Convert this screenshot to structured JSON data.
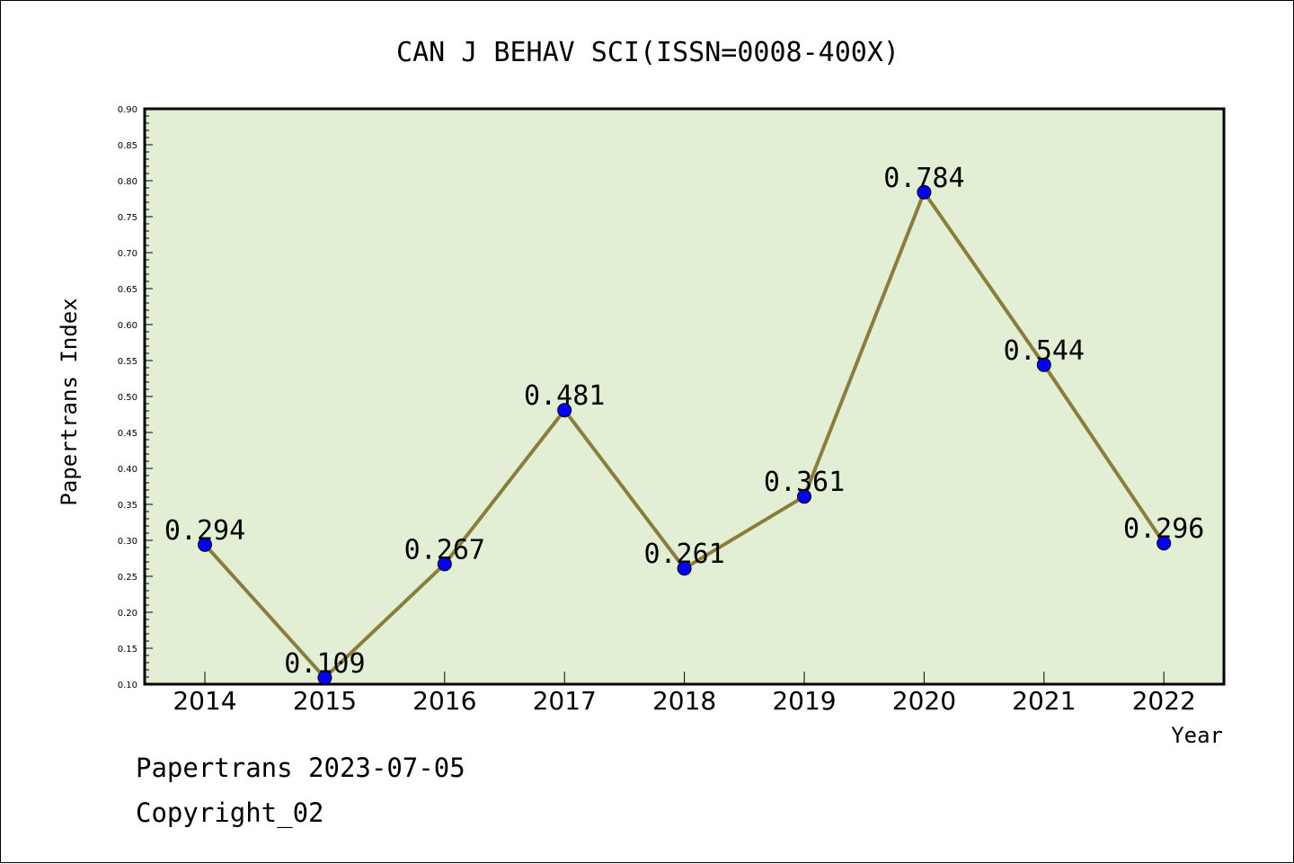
{
  "chart_data": {
    "type": "line",
    "title": "CAN J BEHAV SCI(ISSN=0008-400X)",
    "xlabel": "Year",
    "ylabel": "Papertrans Index",
    "ylim": [
      0.1,
      0.9
    ],
    "y_ticks": [
      "0.10",
      "0.15",
      "0.20",
      "0.25",
      "0.30",
      "0.35",
      "0.40",
      "0.45",
      "0.50",
      "0.55",
      "0.60",
      "0.65",
      "0.70",
      "0.75",
      "0.80",
      "0.85",
      "0.90"
    ],
    "categories": [
      "2014",
      "2015",
      "2016",
      "2017",
      "2018",
      "2019",
      "2020",
      "2021",
      "2022"
    ],
    "series": [
      {
        "values": [
          0.294,
          0.109,
          0.267,
          0.481,
          0.261,
          0.361,
          0.784,
          0.544,
          0.296
        ],
        "labels": [
          "0.294",
          "0.109",
          "0.267",
          "0.481",
          "0.261",
          "0.361",
          "0.784",
          "0.544",
          "0.296"
        ]
      }
    ],
    "grid": false,
    "colors": {
      "plot_bg": "#e2efd5",
      "line": "#8b7d3a",
      "marker": "#0000ff"
    }
  },
  "footer": {
    "line1": "Papertrans 2023-07-05",
    "line2": "Copyright_02"
  }
}
